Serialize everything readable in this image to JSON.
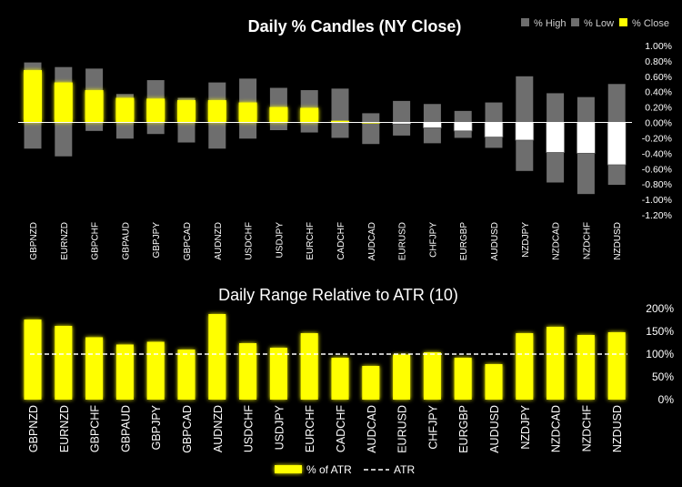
{
  "chart_data": [
    {
      "type": "candle",
      "title": "Daily % Candles (NY Close)",
      "legend": [
        "% High",
        "% Low",
        "% Close"
      ],
      "categories": [
        "GBPNZD",
        "EURNZD",
        "GBPCHF",
        "GBPAUD",
        "GBPJPY",
        "GBPCAD",
        "AUDNZD",
        "USDCHF",
        "USDJPY",
        "EURCHF",
        "CADCHF",
        "AUDCAD",
        "EURUSD",
        "CHFJPY",
        "EURGBP",
        "AUDUSD",
        "NZDJPY",
        "NZDCAD",
        "NZDCHF",
        "NZDUSD"
      ],
      "series": [
        {
          "name": "% High",
          "values": [
            0.78,
            0.72,
            0.7,
            0.37,
            0.55,
            0.32,
            0.52,
            0.57,
            0.45,
            0.42,
            0.44,
            0.12,
            0.28,
            0.24,
            0.15,
            0.26,
            0.6,
            0.38,
            0.33,
            0.5
          ]
        },
        {
          "name": "% Low",
          "values": [
            -0.34,
            -0.44,
            -0.11,
            -0.21,
            -0.15,
            -0.26,
            -0.34,
            -0.21,
            -0.1,
            -0.13,
            -0.2,
            -0.28,
            -0.17,
            -0.27,
            -0.2,
            -0.33,
            -0.63,
            -0.78,
            -0.93,
            -0.81
          ]
        },
        {
          "name": "% Close",
          "values": [
            0.68,
            0.52,
            0.42,
            0.32,
            0.31,
            0.29,
            0.29,
            0.26,
            0.2,
            0.19,
            0.02,
            0.0,
            -0.02,
            -0.07,
            -0.11,
            -0.19,
            -0.23,
            -0.39,
            -0.4,
            -0.55
          ]
        }
      ],
      "yticks": [
        "1.00%",
        "0.80%",
        "0.60%",
        "0.40%",
        "0.20%",
        "0.00%",
        "-0.20%",
        "-0.40%",
        "-0.60%",
        "-0.80%",
        "-1.00%",
        "-1.20%"
      ],
      "ylim": [
        -1.2,
        1.0
      ],
      "colors": {
        "range": "#6e6e6e",
        "up": "#ffff00",
        "down": "#ffffff",
        "zero": "#ffffff"
      }
    },
    {
      "type": "bar",
      "title": "Daily Range Relative to ATR (10)",
      "legend": [
        "% of ATR",
        "ATR"
      ],
      "categories": [
        "GBPNZD",
        "EURNZD",
        "GBPCHF",
        "GBPAUD",
        "GBPJPY",
        "GBPCAD",
        "AUDNZD",
        "USDCHF",
        "USDJPY",
        "EURCHF",
        "CADCHF",
        "AUDCAD",
        "EURUSD",
        "CHFJPY",
        "EURGBP",
        "AUDUSD",
        "NZDJPY",
        "NZDCAD",
        "NZDCHF",
        "NZDUSD"
      ],
      "values": [
        176,
        162,
        137,
        121,
        127,
        110,
        188,
        124,
        114,
        146,
        92,
        74,
        99,
        104,
        92,
        78,
        146,
        160,
        142,
        148
      ],
      "reference": 100,
      "yticks": [
        "200%",
        "150%",
        "100%",
        "50%",
        "0%"
      ],
      "ylim": [
        0,
        200
      ],
      "colors": {
        "bar": "#ffff00",
        "glow": "#d8d800",
        "atr_line": "#ffffff"
      }
    }
  ]
}
